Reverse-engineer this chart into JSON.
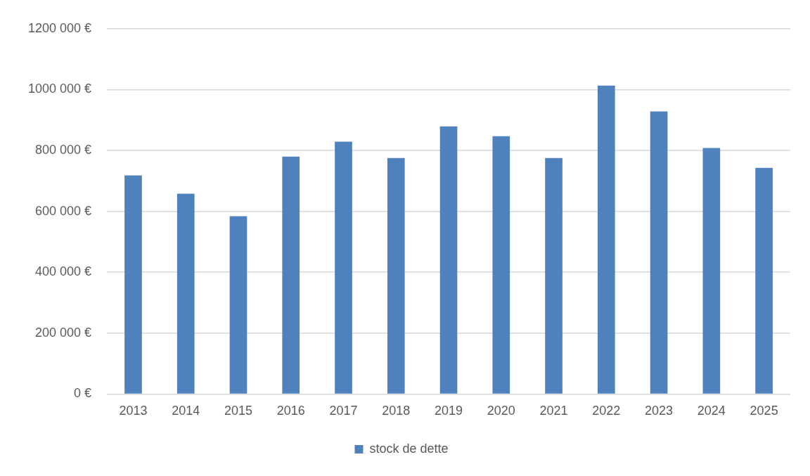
{
  "chart_data": {
    "type": "bar",
    "categories": [
      "2013",
      "2014",
      "2015",
      "2016",
      "2017",
      "2018",
      "2019",
      "2020",
      "2021",
      "2022",
      "2023",
      "2024",
      "2025"
    ],
    "series": [
      {
        "name": "stock de dette",
        "color": "#4f81bd",
        "values": [
          718000,
          658000,
          584000,
          780000,
          829000,
          775000,
          879000,
          847000,
          775000,
          1013000,
          928000,
          808000,
          743000
        ]
      }
    ],
    "ylim": [
      0,
      1200000
    ],
    "yticks": [
      {
        "value": 0,
        "label": "0 €"
      },
      {
        "value": 200000,
        "label": "200 000 €"
      },
      {
        "value": 400000,
        "label": "400 000 €"
      },
      {
        "value": 600000,
        "label": "600 000 €"
      },
      {
        "value": 800000,
        "label": "800 000 €"
      },
      {
        "value": 1000000,
        "label": "1000 000 €"
      },
      {
        "value": 1200000,
        "label": "1200 000 €"
      }
    ],
    "grid": "y",
    "legend": "bottom"
  }
}
